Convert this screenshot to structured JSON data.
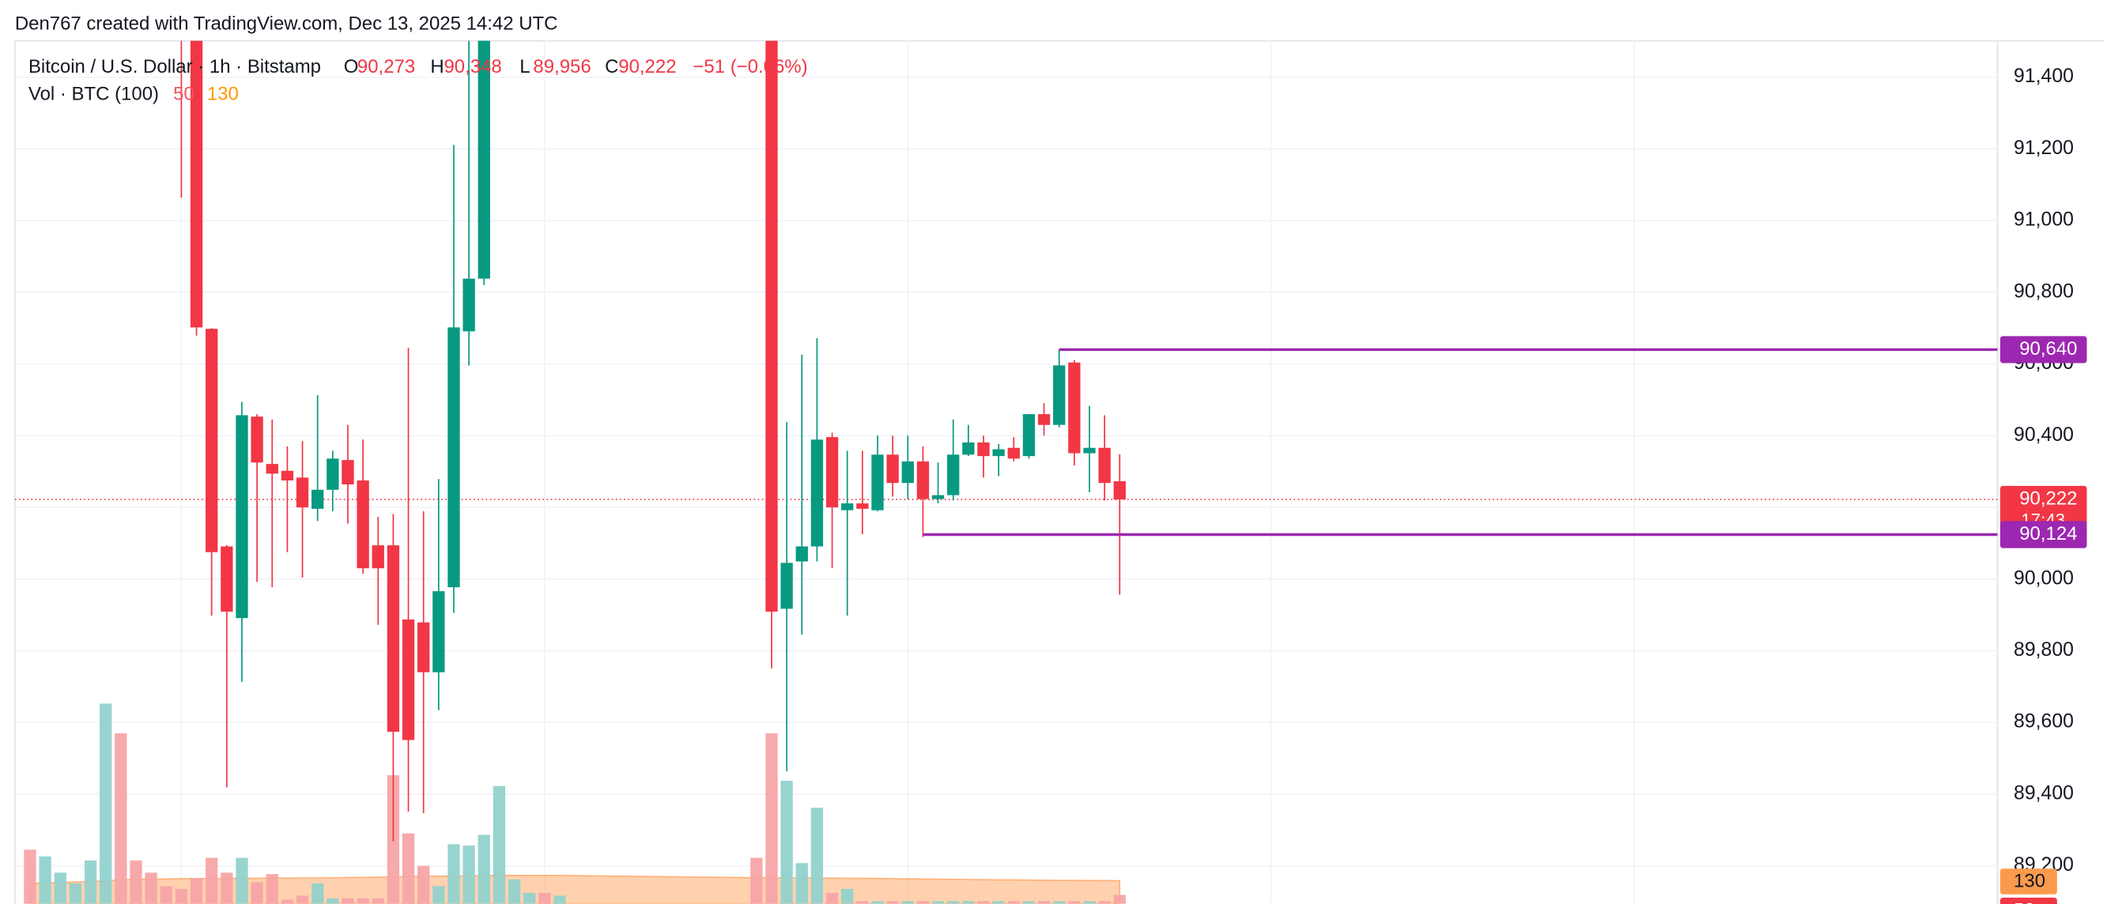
{
  "header": "Den767 created with TradingView.com, Dec 13, 2025 14:42 UTC",
  "chart_data": {
    "type": "candlestick",
    "title": "Bitcoin / U.S. Dollar · 1h · Bitstamp",
    "ohlc_legend": [
      {
        "key": "O",
        "value": 90273,
        "label": "90,273"
      },
      {
        "key": "H",
        "value": 90348,
        "label": "90,348"
      },
      {
        "key": "L",
        "value": 89956,
        "label": "89,956"
      },
      {
        "key": "C",
        "value": 90222,
        "label": "90,222"
      }
    ],
    "change_label": "−51 (−0.06%)",
    "categories": [
      null,
      null,
      null,
      null,
      null,
      null,
      null,
      null,
      null,
      null,
      null,
      null,
      null,
      null,
      null,
      null,
      null,
      null,
      null,
      null,
      null,
      null,
      null,
      null,
      null,
      null,
      null,
      null,
      null,
      null,
      null,
      null,
      null,
      null,
      null,
      null,
      null,
      null,
      null,
      null,
      null,
      null,
      null,
      null,
      null,
      null,
      null,
      null,
      null,
      null,
      null,
      null,
      null,
      null,
      null,
      null,
      null,
      null,
      null,
      null,
      null,
      null,
      null,
      null,
      null,
      null,
      null,
      null,
      null,
      null,
      null,
      null,
      null
    ],
    "open": [
      null,
      null,
      null,
      null,
      null,
      null,
      null,
      null,
      null,
      null,
      91700,
      91600,
      90698,
      90091,
      89891,
      90453,
      90321,
      90302,
      90283,
      90196,
      90249,
      90332,
      90275,
      90094,
      90094,
      89887,
      89879,
      89740,
      89977,
      90691,
      90838,
      null,
      null,
      null,
      null,
      null,
      null,
      null,
      null,
      null,
      null,
      null,
      null,
      null,
      null,
      null,
      null,
      null,
      null,
      91700,
      89917,
      90049,
      90091,
      90396,
      90192,
      90211,
      90192,
      90347,
      90268,
      90328,
      90223,
      90234,
      90347,
      90381,
      90343,
      90366,
      90343,
      90460,
      90430,
      90604,
      90351,
      90366,
      90273
    ],
    "high": [
      null,
      null,
      null,
      null,
      null,
      null,
      null,
      null,
      null,
      null,
      91800,
      91650,
      90700,
      90095,
      90494,
      90460,
      90445,
      90370,
      90385,
      90513,
      90358,
      90430,
      90389,
      90174,
      90181,
      90645,
      90189,
      90279,
      91211,
      91600,
      91700,
      null,
      null,
      null,
      null,
      null,
      null,
      null,
      null,
      null,
      null,
      null,
      null,
      null,
      null,
      null,
      null,
      null,
      null,
      91800,
      90438,
      90626,
      90672,
      90408,
      90358,
      90358,
      90400,
      90400,
      90400,
      90370,
      90325,
      90445,
      90430,
      90400,
      90377,
      90396,
      90460,
      90491,
      90640,
      90611,
      90483,
      90457,
      90348
    ],
    "low": [
      null,
      null,
      null,
      null,
      null,
      null,
      null,
      null,
      null,
      null,
      91064,
      90679,
      89898,
      89419,
      89713,
      89992,
      89977,
      90075,
      90004,
      90162,
      90189,
      90155,
      90015,
      89872,
      89268,
      89351,
      89347,
      89634,
      89906,
      90596,
      90820,
      null,
      null,
      null,
      null,
      null,
      null,
      null,
      null,
      null,
      null,
      null,
      null,
      null,
      null,
      null,
      null,
      null,
      null,
      89751,
      89464,
      89845,
      90049,
      90030,
      89898,
      90125,
      90189,
      90230,
      90223,
      90117,
      90211,
      90219,
      90343,
      90283,
      90287,
      90328,
      90336,
      90400,
      90423,
      90317,
      90242,
      90219,
      89956
    ],
    "close": [
      null,
      null,
      null,
      null,
      null,
      null,
      null,
      null,
      null,
      null,
      91550,
      90702,
      90075,
      89909,
      90457,
      90325,
      90294,
      90275,
      90200,
      90249,
      90336,
      90264,
      90030,
      90030,
      89574,
      89551,
      89740,
      89966,
      90702,
      90838,
      91600,
      null,
      null,
      null,
      null,
      null,
      null,
      null,
      null,
      null,
      null,
      null,
      null,
      null,
      null,
      null,
      null,
      null,
      null,
      89909,
      90045,
      90091,
      90389,
      90200,
      90211,
      90196,
      90347,
      90268,
      90328,
      90223,
      90234,
      90347,
      90381,
      90343,
      90362,
      90336,
      90460,
      90430,
      90596,
      90351,
      90366,
      90268,
      90222
    ],
    "up_color": "#089981",
    "down_color": "#f23645",
    "ylim": [
      89094,
      91494
    ],
    "yticks": [
      {
        "value": 89200,
        "label": "89,200"
      },
      {
        "value": 89400,
        "label": "89,400"
      },
      {
        "value": 89600,
        "label": "89,600"
      },
      {
        "value": 89800,
        "label": "89,800"
      },
      {
        "value": 90000,
        "label": "90,000"
      },
      {
        "value": 90200,
        "label": "90,200"
      },
      {
        "value": 90400,
        "label": "90,400"
      },
      {
        "value": 90600,
        "label": "90,600"
      },
      {
        "value": 90800,
        "label": "90,800"
      },
      {
        "value": 91000,
        "label": "91,000"
      },
      {
        "value": 91200,
        "label": "91,200"
      },
      {
        "value": 91400,
        "label": "91,400"
      }
    ],
    "xlim": [
      -1,
      130
    ],
    "grid": true,
    "levels": [
      {
        "value": 90640,
        "label": "90,640",
        "color": "#9c27b0"
      },
      {
        "value": 90124,
        "label": "90,124",
        "color": "#9c27b0"
      }
    ],
    "last_price": {
      "value": 90222,
      "label": "90,222",
      "countdown": "17:43",
      "color": "#f23645"
    },
    "volume": {
      "name": "Vol · BTC (100)",
      "ylim": [
        0,
        4865
      ],
      "values": [
        306,
        268,
        176,
        115,
        245,
        1132,
        964,
        245,
        176,
        100,
        84,
        145,
        260,
        176,
        260,
        122,
        168,
        23,
        46,
        115,
        31,
        31,
        31,
        31,
        727,
        398,
        214,
        100,
        337,
        329,
        390,
        666,
        138,
        61,
        61,
        46,
        null,
        null,
        null,
        null,
        null,
        null,
        null,
        null,
        null,
        null,
        null,
        null,
        260,
        964,
        696,
        230,
        543,
        61,
        84,
        15,
        15,
        15,
        15,
        15,
        15,
        15,
        15,
        15,
        15,
        15,
        15,
        15,
        15,
        15,
        15,
        15,
        50
      ],
      "colors": [
        "#f7a4a6",
        "#92d2cc",
        "#92d2cc",
        "#92d2cc",
        "#92d2cc",
        "#92d2cc",
        "#f7a4a6",
        "#f7a4a6",
        "#f7a4a6",
        "#f7a4a6",
        "#f7a4a6",
        "#f7a4a6",
        "#f7a4a6",
        "#f7a4a6",
        "#92d2cc",
        "#f7a4a6",
        "#f7a4a6",
        "#f7a4a6",
        "#f7a4a6",
        "#92d2cc",
        "#92d2cc",
        "#f7a4a6",
        "#f7a4a6",
        "#f7a4a6",
        "#f7a4a6",
        "#f7a4a6",
        "#f7a4a6",
        "#92d2cc",
        "#92d2cc",
        "#92d2cc",
        "#92d2cc",
        "#92d2cc",
        "#92d2cc",
        "#92d2cc",
        "#f7a4a6",
        "#92d2cc",
        null,
        null,
        null,
        null,
        null,
        null,
        null,
        null,
        null,
        null,
        null,
        null,
        "#f7a4a6",
        "#f7a4a6",
        "#92d2cc",
        "#92d2cc",
        "#92d2cc",
        "#f7a4a6",
        "#92d2cc",
        "#f7a4a6",
        "#92d2cc",
        "#f7a4a6",
        "#92d2cc",
        "#f7a4a6",
        "#92d2cc",
        "#92d2cc",
        "#92d2cc",
        "#f7a4a6",
        "#92d2cc",
        "#f7a4a6",
        "#92d2cc",
        "#f7a4a6",
        "#92d2cc",
        "#f7a4a6",
        "#92d2cc",
        "#f7a4a6",
        "#f7a4a6"
      ],
      "value_label": {
        "value": 50,
        "label": "50",
        "color": "#f23645"
      },
      "ma_values": [
        115,
        118,
        120,
        123,
        125,
        130,
        135,
        138,
        140,
        140,
        142,
        142,
        143,
        143,
        144,
        144,
        145,
        145,
        146,
        146,
        147,
        148,
        149,
        150,
        152,
        154,
        155,
        156,
        157,
        158,
        159,
        160,
        160,
        160,
        160,
        160,
        159,
        158,
        157,
        156,
        155,
        154,
        153,
        152,
        151,
        150,
        149,
        148,
        147,
        147,
        146,
        146,
        145,
        145,
        144,
        144,
        143,
        142,
        141,
        140,
        139,
        138,
        137,
        136,
        135,
        135,
        134,
        133,
        132,
        132,
        131,
        131,
        130
      ],
      "ma_color": "#ffb27a",
      "ma_label": {
        "value": 130,
        "label": "130",
        "color": "#ff9800"
      }
    }
  }
}
